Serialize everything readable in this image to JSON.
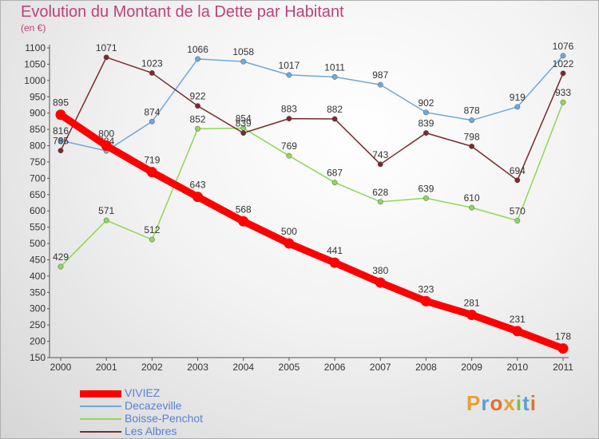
{
  "title": "Evolution du Montant de la Dette par Habitant",
  "unit": "(en €)",
  "logo": "Proxiti",
  "chart_data": {
    "type": "line",
    "x": [
      "2000",
      "2001",
      "2002",
      "2003",
      "2004",
      "2005",
      "2006",
      "2007",
      "2008",
      "2009",
      "2010",
      "2011"
    ],
    "ylim": [
      150,
      1100
    ],
    "yticks": [
      150,
      200,
      250,
      300,
      350,
      400,
      450,
      500,
      550,
      600,
      650,
      700,
      750,
      800,
      850,
      900,
      950,
      1000,
      1050,
      1100
    ],
    "grid": false,
    "legend_position": "bottom-left",
    "series": [
      {
        "name": "VIVIEZ",
        "color": "#ff0000",
        "values": [
          895,
          800,
          719,
          643,
          568,
          500,
          441,
          380,
          323,
          281,
          231,
          178
        ]
      },
      {
        "name": "Decazeville",
        "color": "#6fa8dc",
        "values": [
          816,
          784,
          874,
          1066,
          1058,
          1017,
          1011,
          987,
          902,
          878,
          919,
          1076
        ]
      },
      {
        "name": "Boisse-Penchot",
        "color": "#8fd65a",
        "values": [
          429,
          571,
          512,
          852,
          854,
          769,
          687,
          628,
          639,
          610,
          570,
          933
        ]
      },
      {
        "name": "Les Albres",
        "color": "#7a2a2a",
        "values": [
          785,
          1071,
          1023,
          922,
          839,
          883,
          882,
          743,
          839,
          798,
          694,
          1022
        ]
      }
    ]
  }
}
